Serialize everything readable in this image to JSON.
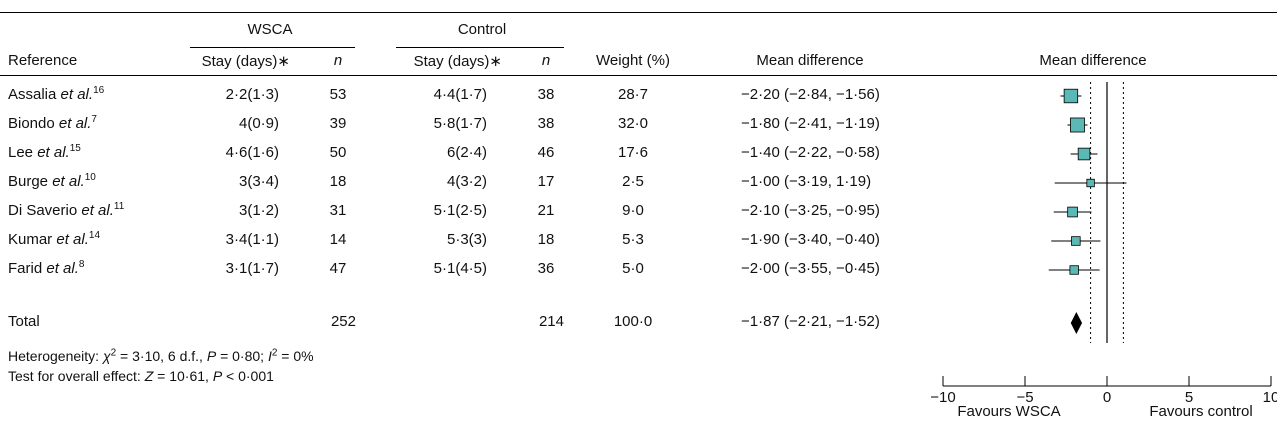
{
  "header": {
    "group1": "WSCA",
    "group2": "Control",
    "reference": "Reference",
    "stay1": "Stay (days)∗",
    "n1": "n",
    "stay2": "Stay (days)∗",
    "n2": "n",
    "weight": "Weight (%)",
    "md": "Mean difference",
    "md_plot": "Mean difference"
  },
  "rows": [
    {
      "author": "Assalia",
      "etal": "et al.",
      "ref": "16",
      "wsca_stay": "2·2(1·3)",
      "wsca_n": "53",
      "ctrl_stay": "4·4(1·7)",
      "ctrl_n": "38",
      "weight": "28·7",
      "md_text": "−2·20 (−2·84, −1·56)"
    },
    {
      "author": "Biondo",
      "etal": "et al.",
      "ref": "7",
      "wsca_stay": "4(0·9)",
      "wsca_n": "39",
      "ctrl_stay": "5·8(1·7)",
      "ctrl_n": "38",
      "weight": "32·0",
      "md_text": "−1·80 (−2·41, −1·19)"
    },
    {
      "author": "Lee",
      "etal": "et al.",
      "ref": "15",
      "wsca_stay": "4·6(1·6)",
      "wsca_n": "50",
      "ctrl_stay": "6(2·4)",
      "ctrl_n": "46",
      "weight": "17·6",
      "md_text": "−1·40 (−2·22, −0·58)"
    },
    {
      "author": "Burge",
      "etal": "et al.",
      "ref": "10",
      "wsca_stay": "3(3·4)",
      "wsca_n": "18",
      "ctrl_stay": "4(3·2)",
      "ctrl_n": "17",
      "weight": "2·5",
      "md_text": "−1·00 (−3·19, 1·19)"
    },
    {
      "author": "Di Saverio",
      "etal": "et al.",
      "ref": "11",
      "wsca_stay": "3(1·2)",
      "wsca_n": "31",
      "ctrl_stay": "5·1(2·5)",
      "ctrl_n": "21",
      "weight": "9·0",
      "md_text": "−2·10 (−3·25, −0·95)"
    },
    {
      "author": "Kumar",
      "etal": "et al.",
      "ref": "14",
      "wsca_stay": "3·4(1·1)",
      "wsca_n": "14",
      "ctrl_stay": "5·3(3)",
      "ctrl_n": "18",
      "weight": "5·3",
      "md_text": "−1·90 (−3·40, −0·40)"
    },
    {
      "author": "Farid",
      "etal": "et al.",
      "ref": "8",
      "wsca_stay": "3·1(1·7)",
      "wsca_n": "47",
      "ctrl_stay": "5·1(4·5)",
      "ctrl_n": "36",
      "weight": "5·0",
      "md_text": "−2·00 (−3·55, −0·45)"
    }
  ],
  "total": {
    "label": "Total",
    "wsca_n": "252",
    "ctrl_n": "214",
    "weight": "100·0",
    "md_text": "−1·87 (−2·21, −1·52)"
  },
  "heterogeneity": {
    "prefix": "Heterogeneity: ",
    "chi": "χ",
    "chi_sup": "2",
    "chi_val": " = 3·10, 6 d.f., ",
    "p": "P",
    "p_val": " = 0·80; ",
    "i": "I",
    "i_sup": "2",
    "i_val": " = 0%"
  },
  "overall": {
    "prefix": "Test for overall effect: ",
    "z": "Z",
    "z_val": " = 10·61, ",
    "p": "P",
    "p_val": " < 0·001"
  },
  "favours": {
    "left": "Favours WSCA",
    "right": "Favours control"
  },
  "colors": {
    "marker": "#5bb8b4",
    "diamond": "#000000"
  },
  "chart_data": {
    "type": "forest",
    "xlim": [
      -10,
      10
    ],
    "xticks": [
      {
        "value": -10,
        "label": "−10"
      },
      {
        "value": -5,
        "label": "−5"
      },
      {
        "value": 0,
        "label": "0"
      },
      {
        "value": 5,
        "label": "5"
      },
      {
        "value": 10,
        "label": "10"
      }
    ],
    "reference_lines_dotted": [
      -1,
      1
    ],
    "studies": [
      {
        "md": -2.2,
        "lo": -2.84,
        "hi": -1.56,
        "weight": 28.7
      },
      {
        "md": -1.8,
        "lo": -2.41,
        "hi": -1.19,
        "weight": 32.0
      },
      {
        "md": -1.4,
        "lo": -2.22,
        "hi": -0.58,
        "weight": 17.6
      },
      {
        "md": -1.0,
        "lo": -3.19,
        "hi": 1.19,
        "weight": 2.5
      },
      {
        "md": -2.1,
        "lo": -3.25,
        "hi": -0.95,
        "weight": 9.0
      },
      {
        "md": -1.9,
        "lo": -3.4,
        "hi": -0.4,
        "weight": 5.3
      },
      {
        "md": -2.0,
        "lo": -3.55,
        "hi": -0.45,
        "weight": 5.0
      }
    ],
    "pooled": {
      "md": -1.87,
      "lo": -2.21,
      "hi": -1.52
    }
  }
}
